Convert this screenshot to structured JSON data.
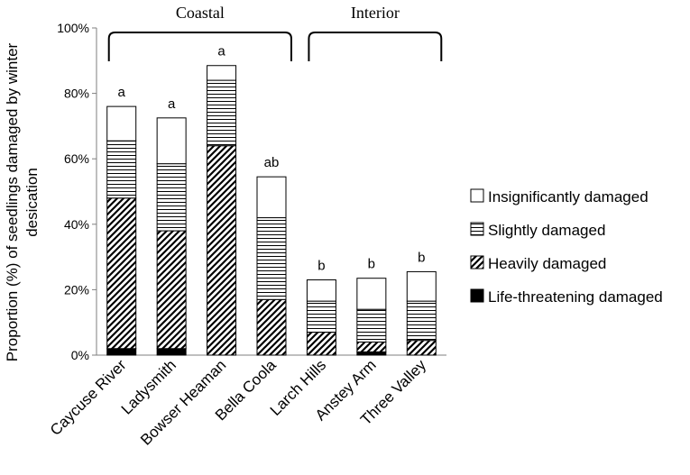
{
  "chart_data": {
    "type": "bar",
    "stacked": true,
    "categories": [
      "Caycuse River",
      "Ladysmith",
      "Bowser Heaman",
      "Bella Coola",
      "Larch Hills",
      "Anstey Arm",
      "Three Valley"
    ],
    "groups": [
      {
        "label": "Coastal",
        "categories": [
          "Caycuse River",
          "Ladysmith",
          "Bowser Heaman",
          "Bella Coola"
        ]
      },
      {
        "label": "Interior",
        "categories": [
          "Larch Hills",
          "Anstey Arm",
          "Three Valley"
        ]
      }
    ],
    "series": [
      {
        "name": "Life-threatening damaged",
        "pattern": "solid-black",
        "values": [
          2,
          2,
          0,
          0,
          0,
          1,
          0
        ]
      },
      {
        "name": "Heavily damaged",
        "pattern": "diagonal-hatch",
        "values": [
          46,
          36,
          64,
          17,
          7,
          3,
          4.5
        ]
      },
      {
        "name": "Slightly damaged",
        "pattern": "horizontal-lines",
        "values": [
          17.5,
          20.5,
          20,
          25,
          9.5,
          10,
          12
        ]
      },
      {
        "name": "Insignificantly damaged",
        "pattern": "white",
        "values": [
          10.5,
          14,
          4.5,
          12.5,
          6.5,
          9.5,
          9
        ]
      }
    ],
    "significance_letters": [
      "a",
      "a",
      "a",
      "ab",
      "b",
      "b",
      "b"
    ],
    "ylabel": "Proportion (%) of seedlings damaged by winter desication",
    "ylim": [
      0,
      100
    ],
    "yticks": [
      "0%",
      "20%",
      "40%",
      "60%",
      "80%",
      "100%"
    ],
    "grid": false,
    "legend_position": "right",
    "legend_order": [
      "Insignificantly damaged",
      "Slightly damaged",
      "Heavily damaged",
      "Life-threatening damaged"
    ]
  }
}
